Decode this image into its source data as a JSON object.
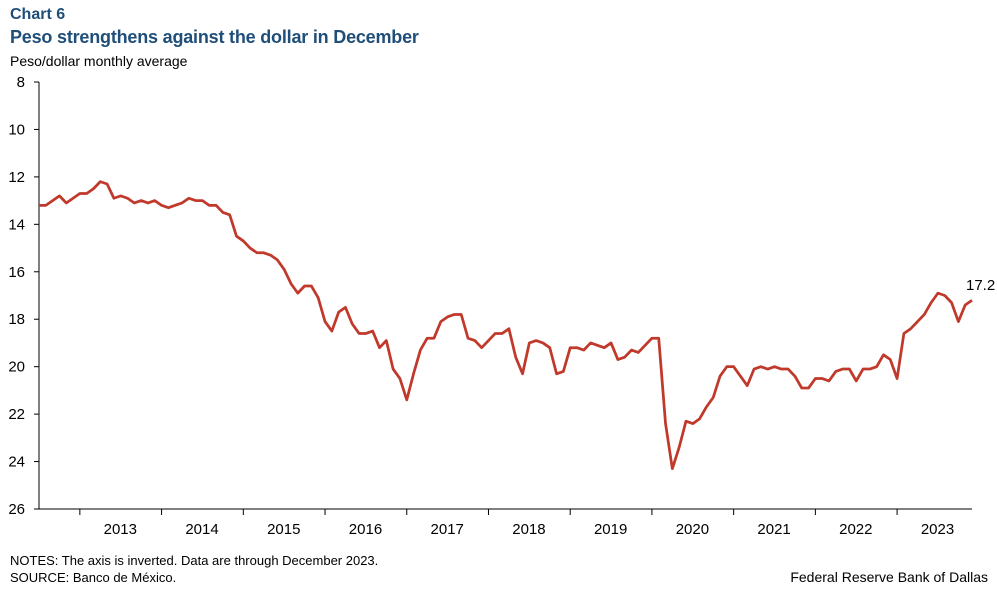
{
  "header": {
    "chart_label": "Chart 6",
    "title": "Peso strengthens against the dollar in December"
  },
  "footer": {
    "notes": "NOTES: The axis is inverted. Data are through December 2023.",
    "source": "SOURCE: Banco de México.",
    "credit": "Federal Reserve Bank of Dallas"
  },
  "colors": {
    "line": "#c0392b",
    "axis": "#000000"
  },
  "chart_data": {
    "type": "line",
    "title": "Peso strengthens against the dollar in December",
    "ylabel": "Peso/dollar monthly  average",
    "xlabel": "",
    "y_inverted": true,
    "ylim": [
      8,
      26
    ],
    "yticks": [
      8,
      10,
      12,
      14,
      16,
      18,
      20,
      22,
      24,
      26
    ],
    "xlim": [
      "2012-07",
      "2023-12"
    ],
    "xticks": [
      "2013",
      "2014",
      "2015",
      "2016",
      "2017",
      "2018",
      "2019",
      "2020",
      "2021",
      "2022",
      "2023"
    ],
    "grid": false,
    "last_value_label": "17.2",
    "series": [
      {
        "values": [
          [
            "2012-07",
            13.2
          ],
          [
            "2012-08",
            13.2
          ],
          [
            "2012-09",
            13.0
          ],
          [
            "2012-10",
            12.8
          ],
          [
            "2012-11",
            13.1
          ],
          [
            "2012-12",
            12.9
          ],
          [
            "2013-01",
            12.7
          ],
          [
            "2013-02",
            12.7
          ],
          [
            "2013-03",
            12.5
          ],
          [
            "2013-04",
            12.2
          ],
          [
            "2013-05",
            12.3
          ],
          [
            "2013-06",
            12.9
          ],
          [
            "2013-07",
            12.8
          ],
          [
            "2013-08",
            12.9
          ],
          [
            "2013-09",
            13.1
          ],
          [
            "2013-10",
            13.0
          ],
          [
            "2013-11",
            13.1
          ],
          [
            "2013-12",
            13.0
          ],
          [
            "2014-01",
            13.2
          ],
          [
            "2014-02",
            13.3
          ],
          [
            "2014-03",
            13.2
          ],
          [
            "2014-04",
            13.1
          ],
          [
            "2014-05",
            12.9
          ],
          [
            "2014-06",
            13.0
          ],
          [
            "2014-07",
            13.0
          ],
          [
            "2014-08",
            13.2
          ],
          [
            "2014-09",
            13.2
          ],
          [
            "2014-10",
            13.5
          ],
          [
            "2014-11",
            13.6
          ],
          [
            "2014-12",
            14.5
          ],
          [
            "2015-01",
            14.7
          ],
          [
            "2015-02",
            15.0
          ],
          [
            "2015-03",
            15.2
          ],
          [
            "2015-04",
            15.2
          ],
          [
            "2015-05",
            15.3
          ],
          [
            "2015-06",
            15.5
          ],
          [
            "2015-07",
            15.9
          ],
          [
            "2015-08",
            16.5
          ],
          [
            "2015-09",
            16.9
          ],
          [
            "2015-10",
            16.6
          ],
          [
            "2015-11",
            16.6
          ],
          [
            "2015-12",
            17.1
          ],
          [
            "2016-01",
            18.1
          ],
          [
            "2016-02",
            18.5
          ],
          [
            "2016-03",
            17.7
          ],
          [
            "2016-04",
            17.5
          ],
          [
            "2016-05",
            18.2
          ],
          [
            "2016-06",
            18.6
          ],
          [
            "2016-07",
            18.6
          ],
          [
            "2016-08",
            18.5
          ],
          [
            "2016-09",
            19.2
          ],
          [
            "2016-10",
            18.9
          ],
          [
            "2016-11",
            20.1
          ],
          [
            "2016-12",
            20.5
          ],
          [
            "2017-01",
            21.4
          ],
          [
            "2017-02",
            20.3
          ],
          [
            "2017-03",
            19.3
          ],
          [
            "2017-04",
            18.8
          ],
          [
            "2017-05",
            18.8
          ],
          [
            "2017-06",
            18.1
          ],
          [
            "2017-07",
            17.9
          ],
          [
            "2017-08",
            17.8
          ],
          [
            "2017-09",
            17.8
          ],
          [
            "2017-10",
            18.8
          ],
          [
            "2017-11",
            18.9
          ],
          [
            "2017-12",
            19.2
          ],
          [
            "2018-01",
            18.9
          ],
          [
            "2018-02",
            18.6
          ],
          [
            "2018-03",
            18.6
          ],
          [
            "2018-04",
            18.4
          ],
          [
            "2018-05",
            19.6
          ],
          [
            "2018-06",
            20.3
          ],
          [
            "2018-07",
            19.0
          ],
          [
            "2018-08",
            18.9
          ],
          [
            "2018-09",
            19.0
          ],
          [
            "2018-10",
            19.2
          ],
          [
            "2018-11",
            20.3
          ],
          [
            "2018-12",
            20.2
          ],
          [
            "2019-01",
            19.2
          ],
          [
            "2019-02",
            19.2
          ],
          [
            "2019-03",
            19.3
          ],
          [
            "2019-04",
            19.0
          ],
          [
            "2019-05",
            19.1
          ],
          [
            "2019-06",
            19.2
          ],
          [
            "2019-07",
            19.0
          ],
          [
            "2019-08",
            19.7
          ],
          [
            "2019-09",
            19.6
          ],
          [
            "2019-10",
            19.3
          ],
          [
            "2019-11",
            19.4
          ],
          [
            "2019-12",
            19.1
          ],
          [
            "2020-01",
            18.8
          ],
          [
            "2020-02",
            18.8
          ],
          [
            "2020-03",
            22.4
          ],
          [
            "2020-04",
            24.3
          ],
          [
            "2020-05",
            23.4
          ],
          [
            "2020-06",
            22.3
          ],
          [
            "2020-07",
            22.4
          ],
          [
            "2020-08",
            22.2
          ],
          [
            "2020-09",
            21.7
          ],
          [
            "2020-10",
            21.3
          ],
          [
            "2020-11",
            20.4
          ],
          [
            "2020-12",
            20.0
          ],
          [
            "2021-01",
            20.0
          ],
          [
            "2021-02",
            20.4
          ],
          [
            "2021-03",
            20.8
          ],
          [
            "2021-04",
            20.1
          ],
          [
            "2021-05",
            20.0
          ],
          [
            "2021-06",
            20.1
          ],
          [
            "2021-07",
            20.0
          ],
          [
            "2021-08",
            20.1
          ],
          [
            "2021-09",
            20.1
          ],
          [
            "2021-10",
            20.4
          ],
          [
            "2021-11",
            20.9
          ],
          [
            "2021-12",
            20.9
          ],
          [
            "2022-01",
            20.5
          ],
          [
            "2022-02",
            20.5
          ],
          [
            "2022-03",
            20.6
          ],
          [
            "2022-04",
            20.2
          ],
          [
            "2022-05",
            20.1
          ],
          [
            "2022-06",
            20.1
          ],
          [
            "2022-07",
            20.6
          ],
          [
            "2022-08",
            20.1
          ],
          [
            "2022-09",
            20.1
          ],
          [
            "2022-10",
            20.0
          ],
          [
            "2022-11",
            19.5
          ],
          [
            "2022-12",
            19.7
          ],
          [
            "2023-01",
            20.5
          ],
          [
            "2023-02",
            18.6
          ],
          [
            "2023-03",
            18.4
          ],
          [
            "2023-04",
            18.1
          ],
          [
            "2023-05",
            17.8
          ],
          [
            "2023-06",
            17.3
          ],
          [
            "2023-07",
            16.9
          ],
          [
            "2023-08",
            17.0
          ],
          [
            "2023-09",
            17.3
          ],
          [
            "2023-10",
            18.1
          ],
          [
            "2023-11",
            17.4
          ],
          [
            "2023-12",
            17.2
          ]
        ]
      }
    ]
  }
}
